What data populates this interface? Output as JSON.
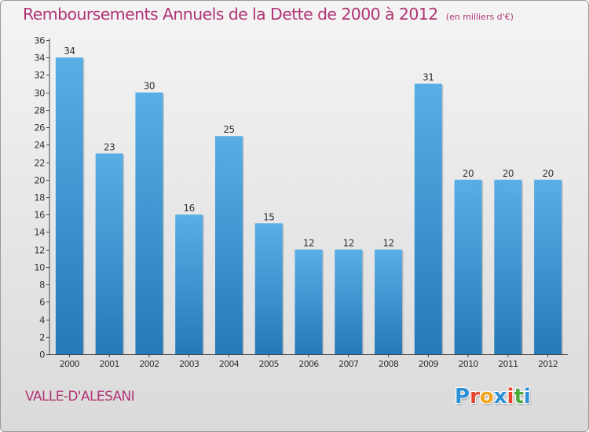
{
  "chart_data": {
    "type": "bar",
    "title": "Remboursements Annuels de la Dette de 2000 à 2012",
    "subtitle": "(en milliers d'€)",
    "categories": [
      "2000",
      "2001",
      "2002",
      "2003",
      "2004",
      "2005",
      "2006",
      "2007",
      "2008",
      "2009",
      "2010",
      "2011",
      "2012"
    ],
    "values": [
      34,
      23,
      30,
      16,
      25,
      15,
      12,
      12,
      12,
      31,
      20,
      20,
      20
    ],
    "data_labels": [
      "34",
      "23",
      "30",
      "16",
      "25",
      "15",
      "12",
      "12",
      "12",
      "31",
      "20",
      "20",
      "20"
    ],
    "y_ticks": [
      "0",
      "2",
      "4",
      "6",
      "8",
      "10",
      "12",
      "14",
      "16",
      "18",
      "20",
      "22",
      "24",
      "26",
      "28",
      "30",
      "32",
      "34",
      "36"
    ],
    "ylim": [
      0,
      36
    ],
    "grid": false,
    "legend": "none",
    "bar_color_top": "#5aaee6",
    "bar_color_bottom": "#2579b8"
  },
  "commune": "VALLE-D'ALESANI",
  "logo": {
    "letters": [
      "P",
      "r",
      "o",
      "x",
      "i",
      "t",
      "i"
    ],
    "colors": [
      "#2a8fd6",
      "#e8432f",
      "#f2a21b",
      "#2a8fd6",
      "#e8432f",
      "#4aaa3c",
      "#2a8fd6"
    ]
  },
  "colors": {
    "title": "#b03575",
    "axis": "#444444"
  }
}
